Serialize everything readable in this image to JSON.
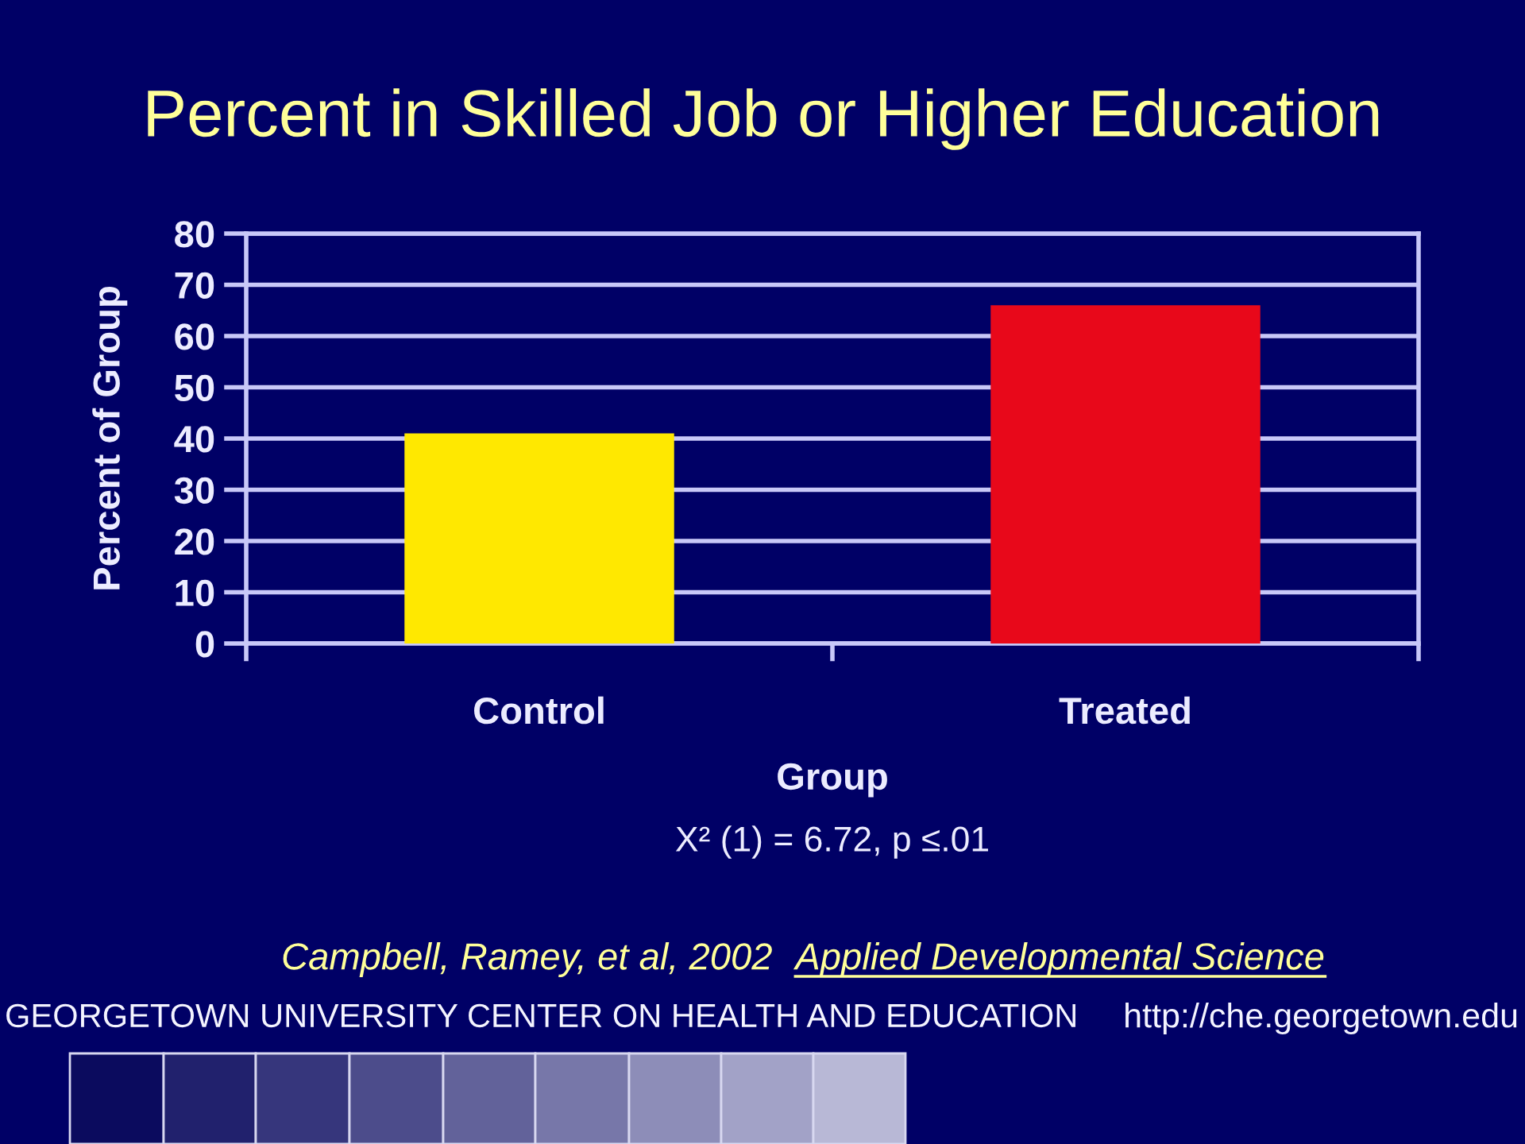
{
  "chart_data": {
    "type": "bar",
    "title": "Percent in Skilled Job or Higher Education",
    "categories": [
      "Control",
      "Treated"
    ],
    "values": [
      41,
      66
    ],
    "colors": [
      "#ffe800",
      "#e8081a"
    ],
    "xlabel": "Group",
    "ylabel": "Percent of Group",
    "ylim": [
      0,
      80
    ],
    "yticks": [
      0,
      10,
      20,
      30,
      40,
      50,
      60,
      70,
      80
    ],
    "grid": "y",
    "annotations": [
      "X² (1) = 6.72, p ≤.01",
      "Campbell, Ramey, et al, 2002",
      "Applied Developmental Science",
      "GEORGETOWN UNIVERSITY CENTER ON HEALTH AND EDUCATION",
      "http://che.georgetown.edu"
    ]
  }
}
